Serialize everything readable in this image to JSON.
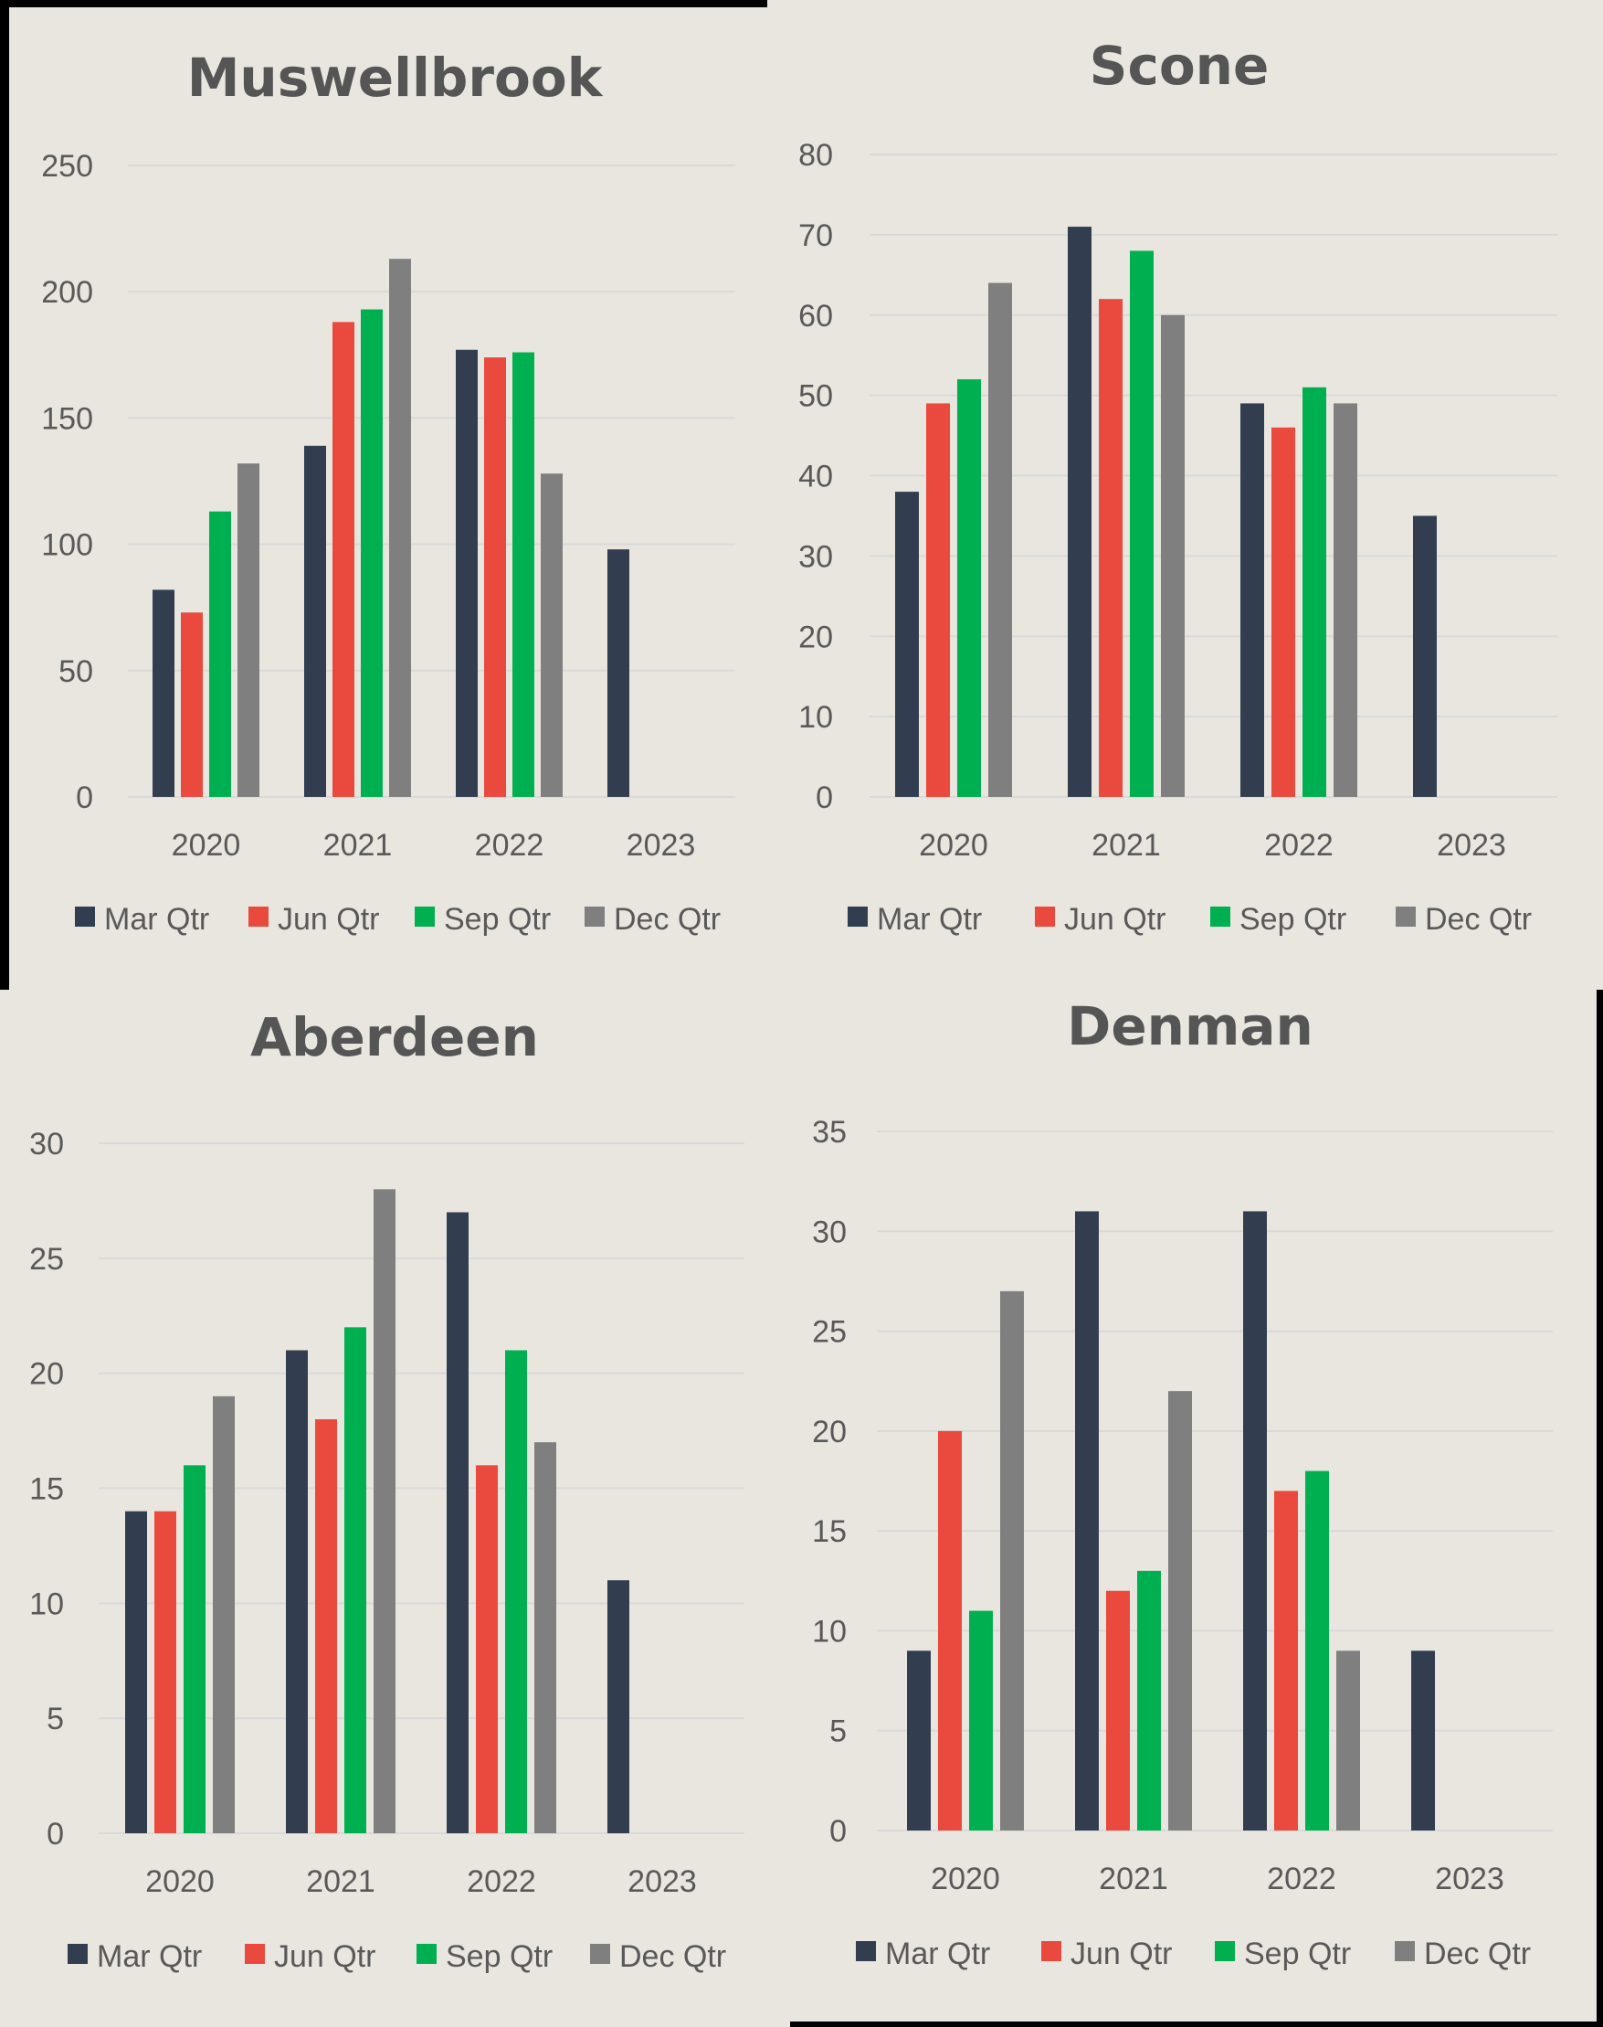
{
  "legend_labels": [
    "Mar Qtr",
    "Jun Qtr",
    "Sep Qtr",
    "Dec Qtr"
  ],
  "colors": {
    "mar": "#323e50",
    "jun": "#ea4a3e",
    "sep": "#00b050",
    "dec": "#7f7f7f",
    "grid": "#d9d9d9",
    "background": "#e8e6df"
  },
  "chart_data": [
    {
      "type": "bar",
      "title": "Muswellbrook",
      "categories": [
        "2020",
        "2021",
        "2022",
        "2023"
      ],
      "ylim": [
        0,
        250
      ],
      "yticks": [
        0,
        50,
        100,
        150,
        200,
        250
      ],
      "legend_position": "bottom",
      "series": [
        {
          "name": "Mar Qtr",
          "values": [
            82,
            139,
            177,
            98
          ]
        },
        {
          "name": "Jun Qtr",
          "values": [
            73,
            188,
            174,
            null
          ]
        },
        {
          "name": "Sep Qtr",
          "values": [
            113,
            193,
            176,
            null
          ]
        },
        {
          "name": "Dec Qtr",
          "values": [
            132,
            213,
            128,
            null
          ]
        }
      ]
    },
    {
      "type": "bar",
      "title": "Scone",
      "categories": [
        "2020",
        "2021",
        "2022",
        "2023"
      ],
      "ylim": [
        0,
        80
      ],
      "yticks": [
        0,
        10,
        20,
        30,
        40,
        50,
        60,
        70,
        80
      ],
      "legend_position": "bottom",
      "series": [
        {
          "name": "Mar Qtr",
          "values": [
            38,
            71,
            49,
            35
          ]
        },
        {
          "name": "Jun Qtr",
          "values": [
            49,
            62,
            46,
            null
          ]
        },
        {
          "name": "Sep Qtr",
          "values": [
            52,
            68,
            51,
            null
          ]
        },
        {
          "name": "Dec Qtr",
          "values": [
            64,
            60,
            49,
            null
          ]
        }
      ]
    },
    {
      "type": "bar",
      "title": "Aberdeen",
      "categories": [
        "2020",
        "2021",
        "2022",
        "2023"
      ],
      "ylim": [
        0,
        30
      ],
      "yticks": [
        0,
        5,
        10,
        15,
        20,
        25,
        30
      ],
      "legend_position": "bottom",
      "series": [
        {
          "name": "Mar Qtr",
          "values": [
            14,
            21,
            27,
            11
          ]
        },
        {
          "name": "Jun Qtr",
          "values": [
            14,
            18,
            16,
            null
          ]
        },
        {
          "name": "Sep Qtr",
          "values": [
            16,
            22,
            21,
            null
          ]
        },
        {
          "name": "Dec Qtr",
          "values": [
            19,
            28,
            17,
            null
          ]
        }
      ]
    },
    {
      "type": "bar",
      "title": "Denman",
      "categories": [
        "2020",
        "2021",
        "2022",
        "2023"
      ],
      "ylim": [
        0,
        35
      ],
      "yticks": [
        0,
        5,
        10,
        15,
        20,
        25,
        30,
        35
      ],
      "legend_position": "bottom",
      "series": [
        {
          "name": "Mar Qtr",
          "values": [
            9,
            31,
            31,
            9
          ]
        },
        {
          "name": "Jun Qtr",
          "values": [
            20,
            12,
            17,
            null
          ]
        },
        {
          "name": "Sep Qtr",
          "values": [
            11,
            13,
            18,
            null
          ]
        },
        {
          "name": "Dec Qtr",
          "values": [
            27,
            22,
            9,
            null
          ]
        }
      ]
    }
  ]
}
